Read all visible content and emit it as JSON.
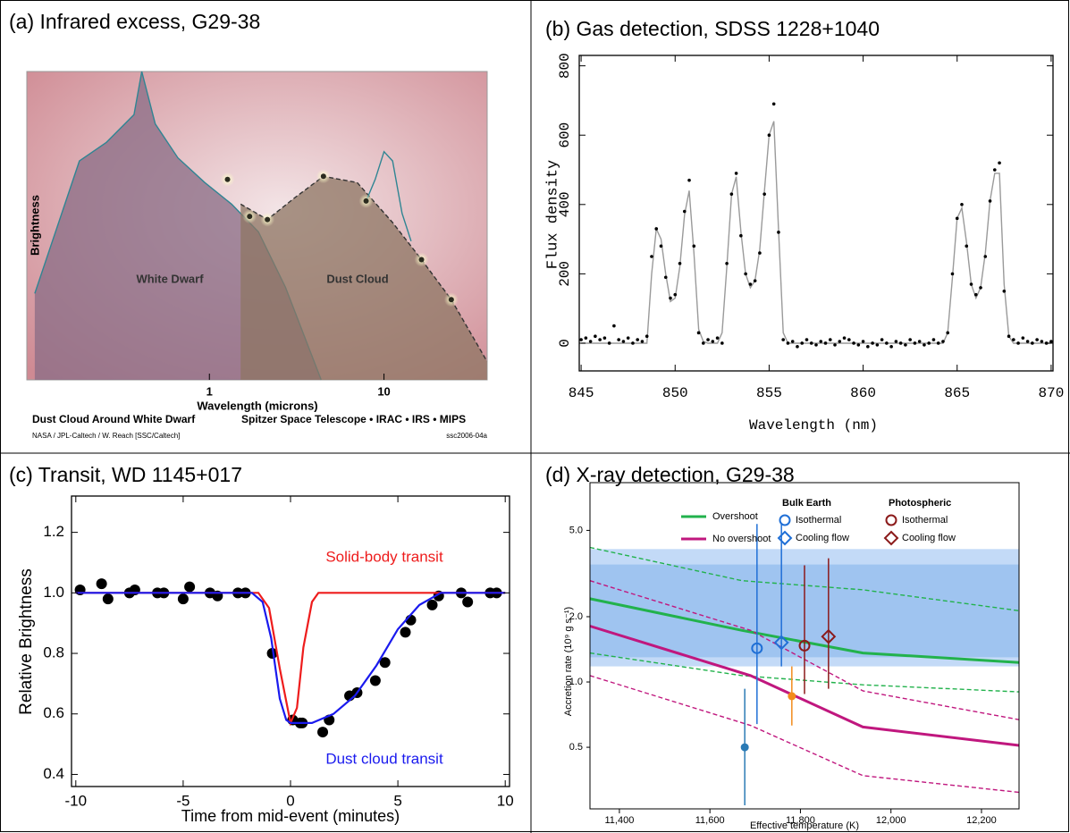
{
  "chart_data": [
    {
      "type": "line",
      "title": "(a) Infrared excess, G29-38",
      "xlabel": "Wavelength (microns)",
      "ylabel": "Brightness",
      "xscale": "log",
      "xlim": [
        0.09,
        39
      ],
      "ylim": [
        0,
        1
      ],
      "xticks": [
        1,
        10
      ],
      "annotations": [
        "White Dwarf",
        "Dust Cloud"
      ],
      "credits": [
        "Dust Cloud Around White Dwarf",
        "Spitzer Space Telescope • IRAC • IRS • MIPS",
        "NASA / JPL-Caltech / W. Reach [SSC/Caltech]",
        "ssc2006-04a"
      ],
      "series": [
        {
          "style": "line",
          "color": "#2f8593",
          "fill": "#8a6c86",
          "x": [
            0.1,
            0.18,
            0.257,
            0.37,
            0.41,
            0.49,
            0.66,
            0.94,
            1.34,
            1.91,
            2.73,
            4.37
          ],
          "values": [
            0.28,
            0.71,
            0.77,
            0.86,
            1.0,
            0.83,
            0.72,
            0.64,
            0.57,
            0.48,
            0.3,
            0.0
          ]
        },
        {
          "style": "dashed",
          "color": "#333333",
          "fill": "#8d7563",
          "x": [
            1.51,
            2.15,
            3.07,
            4.5,
            7.02,
            11.2,
            16.4,
            24.3,
            38.9
          ],
          "values": [
            0.57,
            0.52,
            0.59,
            0.66,
            0.64,
            0.51,
            0.39,
            0.26,
            0.06
          ]
        },
        {
          "style": "line",
          "color": "#2f8593",
          "x": [
            7.9,
            8.9,
            10,
            11.2,
            12.7,
            14.3
          ],
          "values": [
            0.58,
            0.65,
            0.74,
            0.71,
            0.54,
            0.45
          ]
        },
        {
          "style": "glow",
          "color": "#2b2b1f",
          "x": [
            1.27,
            1.7,
            2.15,
            4.5,
            7.9,
            16.4,
            24.3
          ],
          "values": [
            0.65,
            0.53,
            0.52,
            0.66,
            0.58,
            0.39,
            0.26
          ]
        }
      ]
    },
    {
      "type": "line",
      "title": "(b) Gas detection, SDSS 1228+1040",
      "xlabel": "Wavelength (nm)",
      "ylabel": "Flux density",
      "xlim": [
        844.9,
        870.1
      ],
      "ylim": [
        -80,
        830
      ],
      "xticks": [
        845,
        850,
        855,
        860,
        865,
        870
      ],
      "yticks": [
        0,
        200,
        400,
        600,
        800
      ],
      "x": [
        845.0,
        845.25,
        845.5,
        845.75,
        846.0,
        846.25,
        846.5,
        846.75,
        847.0,
        847.25,
        847.5,
        847.75,
        848.0,
        848.25,
        848.5,
        848.75,
        849.0,
        849.25,
        849.5,
        849.75,
        850.0,
        850.25,
        850.5,
        850.75,
        851.0,
        851.25,
        851.5,
        851.75,
        852.0,
        852.25,
        852.5,
        852.75,
        853.0,
        853.25,
        853.5,
        853.75,
        854.0,
        854.25,
        854.5,
        854.75,
        855.0,
        855.25,
        855.5,
        855.75,
        856.0,
        856.25,
        856.5,
        856.75,
        857.0,
        857.25,
        857.5,
        857.75,
        858.0,
        858.25,
        858.5,
        858.75,
        859.0,
        859.25,
        859.5,
        859.75,
        860.0,
        860.25,
        860.5,
        860.75,
        861.0,
        861.25,
        861.5,
        861.75,
        862.0,
        862.25,
        862.5,
        862.75,
        863.0,
        863.25,
        863.5,
        863.75,
        864.0,
        864.25,
        864.5,
        864.75,
        865.0,
        865.25,
        865.5,
        865.75,
        866.0,
        866.25,
        866.5,
        866.75,
        867.0,
        867.25,
        867.5,
        867.75,
        868.0,
        868.25,
        868.5,
        868.75,
        869.0,
        869.25,
        869.5,
        869.75,
        870.0
      ],
      "series": [
        {
          "style": "line",
          "color": "#9a9a9a",
          "values": [
            0,
            0,
            0,
            0,
            0,
            0,
            0,
            0,
            0,
            0,
            0,
            0,
            0,
            0,
            0,
            200,
            330,
            300,
            200,
            120,
            130,
            220,
            370,
            440,
            260,
            40,
            5,
            0,
            0,
            0,
            30,
            220,
            430,
            480,
            320,
            200,
            160,
            180,
            270,
            440,
            600,
            640,
            330,
            30,
            0,
            0,
            0,
            0,
            0,
            0,
            0,
            0,
            0,
            0,
            0,
            0,
            0,
            0,
            0,
            0,
            0,
            0,
            0,
            0,
            0,
            0,
            0,
            0,
            0,
            0,
            0,
            0,
            0,
            0,
            0,
            0,
            0,
            0,
            30,
            190,
            360,
            390,
            290,
            170,
            130,
            160,
            260,
            410,
            490,
            490,
            170,
            20,
            0,
            0,
            0,
            0,
            0,
            0,
            0,
            0,
            0
          ]
        },
        {
          "style": "markers",
          "color": "#000000",
          "values": [
            10,
            15,
            5,
            20,
            10,
            15,
            0,
            50,
            10,
            5,
            15,
            0,
            10,
            5,
            20,
            250,
            330,
            280,
            190,
            130,
            140,
            230,
            380,
            470,
            280,
            30,
            0,
            10,
            5,
            15,
            0,
            230,
            430,
            490,
            310,
            200,
            170,
            180,
            260,
            430,
            600,
            690,
            320,
            10,
            0,
            5,
            -10,
            0,
            10,
            0,
            -5,
            5,
            0,
            10,
            -5,
            5,
            15,
            10,
            0,
            -5,
            5,
            -10,
            0,
            -5,
            10,
            0,
            -10,
            5,
            0,
            -5,
            10,
            0,
            5,
            -5,
            0,
            10,
            0,
            5,
            30,
            200,
            360,
            400,
            280,
            170,
            140,
            160,
            250,
            410,
            500,
            520,
            150,
            20,
            10,
            0,
            15,
            5,
            0,
            10,
            5,
            0,
            5
          ]
        }
      ]
    },
    {
      "type": "line",
      "title": "(c) Transit, WD 1145+017",
      "xlabel": "Time from mid-event (minutes)",
      "ylabel": "Relative Brightness",
      "xlim": [
        -10.2,
        10.2
      ],
      "ylim": [
        0.36,
        1.32
      ],
      "xticks": [
        -10,
        -5,
        0,
        5,
        10
      ],
      "yticks": [
        0.4,
        0.6,
        0.8,
        {
          "value": 1,
          "label": "1.0"
        },
        1.2
      ],
      "series": [
        {
          "style": "disc",
          "color": "#000000",
          "x": [
            -9.8,
            -8.8,
            -8.5,
            -7.5,
            -7.25,
            -6.2,
            -5.9,
            -5.0,
            -4.7,
            -3.75,
            -3.4,
            -2.45,
            -2.1,
            -0.85,
            0.1,
            0.45,
            0.55,
            1.5,
            1.8,
            2.75,
            3.1,
            3.95,
            4.4,
            5.35,
            5.6,
            6.6,
            6.9,
            7.95,
            8.25,
            9.3,
            9.6
          ],
          "values": [
            1.01,
            1.03,
            0.98,
            1.0,
            1.01,
            1.0,
            1.0,
            0.98,
            1.02,
            1.0,
            0.99,
            1.0,
            1.0,
            0.8,
            0.58,
            0.57,
            0.57,
            0.54,
            0.58,
            0.66,
            0.67,
            0.71,
            0.77,
            0.87,
            0.91,
            0.96,
            0.99,
            1.0,
            0.97,
            1.0,
            1.0
          ]
        },
        {
          "name": "Solid-body transit",
          "style": "line",
          "color": "#ee1c1c",
          "x": [
            -10,
            -1.5,
            -1.0,
            -0.5,
            0,
            0.3,
            0.6,
            1.0,
            1.3,
            10
          ],
          "values": [
            1,
            1,
            0.95,
            0.75,
            0.57,
            0.62,
            0.82,
            0.97,
            1,
            1
          ]
        },
        {
          "name": "Dust cloud transit",
          "style": "line",
          "color": "#1a1aee",
          "x": [
            -10,
            -1.8,
            -1.3,
            -0.9,
            -0.5,
            -0.2,
            0,
            1,
            2,
            3,
            4,
            5,
            6,
            7,
            10
          ],
          "values": [
            1,
            1,
            0.97,
            0.85,
            0.65,
            0.58,
            0.57,
            0.57,
            0.6,
            0.66,
            0.76,
            0.88,
            0.96,
            1.0,
            1.0
          ]
        }
      ]
    },
    {
      "type": "scatter",
      "title": "(d) X-ray detection, G29-38",
      "xlabel": "Effective temperature (K)",
      "ylabel": "Accretion rate (10⁹ g s⁻¹)",
      "yscale": "log",
      "xlim": [
        11335,
        12283
      ],
      "ylim": [
        0.26,
        8.3
      ],
      "xticks": [
        {
          "value": 11400,
          "label": "11,400"
        },
        {
          "value": 11600,
          "label": "11,600"
        },
        {
          "value": 11800,
          "label": "11,800"
        },
        {
          "value": 12000,
          "label": "12,000"
        },
        {
          "value": 12200,
          "label": "12,200"
        }
      ],
      "yticks": [
        0.5,
        {
          "value": 1,
          "label": "1.0"
        },
        {
          "value": 2,
          "label": "2.0"
        },
        {
          "value": 5,
          "label": "5.0"
        }
      ],
      "bands": [
        {
          "low": 1.18,
          "high": 4.1,
          "color": "#c3daf7"
        },
        {
          "low": 1.3,
          "high": 3.48,
          "color": "#9fc4f0"
        }
      ],
      "series": [
        {
          "name": "Overshoot",
          "style": "thick",
          "color": "#22b24c",
          "x": [
            11335,
            11671,
            11938,
            12283
          ],
          "values": [
            2.42,
            1.73,
            1.36,
            1.23
          ]
        },
        {
          "style": "dashed",
          "color": "#22b24c",
          "x": [
            11335,
            11671,
            11938,
            12283
          ],
          "values": [
            4.17,
            2.93,
            2.66,
            2.13
          ]
        },
        {
          "style": "dashed",
          "color": "#22b24c",
          "x": [
            11335,
            11671,
            11938,
            12283
          ],
          "values": [
            1.36,
            1.07,
            0.97,
            0.9
          ]
        },
        {
          "name": "No overshoot",
          "style": "thick",
          "color": "#c0177e",
          "x": [
            11335,
            11690,
            11938,
            12283
          ],
          "values": [
            1.81,
            1.07,
            0.62,
            0.51
          ]
        },
        {
          "style": "dashed",
          "color": "#c0177e",
          "x": [
            11335,
            11690,
            11938,
            12283
          ],
          "values": [
            2.93,
            1.73,
            0.91,
            0.67
          ]
        },
        {
          "style": "dashed",
          "color": "#c0177e",
          "x": [
            11335,
            11690,
            11938,
            12283
          ],
          "values": [
            1.07,
            0.63,
            0.37,
            0.31
          ]
        },
        {
          "style": "filled",
          "color": "#2a7ab5",
          "x": [
            11677
          ],
          "values": [
            0.5
          ],
          "lower": [
            0.27
          ],
          "upper": [
            0.93
          ]
        },
        {
          "style": "filled",
          "color": "#f28c1c",
          "x": [
            11781
          ],
          "values": [
            0.86
          ],
          "lower": [
            0.63
          ],
          "upper": [
            1.18
          ]
        }
      ],
      "legend_groups": [
        {
          "title": "Bulk Earth",
          "color": "#1f6fd6",
          "series": [
            {
              "name": "Isothermal",
              "style": "open-circle",
              "x": [
                11704
              ],
              "values": [
                1.43
              ],
              "lower": [
                0.64
              ],
              "upper": [
                5.35
              ]
            },
            {
              "name": "Cooling flow",
              "style": "open-diamond",
              "x": [
                11758
              ],
              "values": [
                1.52
              ],
              "lower": [
                1.18
              ],
              "upper": [
                5.35
              ]
            }
          ]
        },
        {
          "title": "Photospheric",
          "color": "#8b1a1a",
          "series": [
            {
              "name": "Isothermal",
              "style": "open-circle",
              "x": [
                11809
              ],
              "values": [
                1.47
              ],
              "lower": [
                0.88
              ],
              "upper": [
                3.45
              ]
            },
            {
              "name": "Cooling flow",
              "style": "open-diamond",
              "x": [
                11862
              ],
              "values": [
                1.62
              ],
              "lower": [
                0.93
              ],
              "upper": [
                3.72
              ]
            }
          ]
        }
      ]
    }
  ]
}
